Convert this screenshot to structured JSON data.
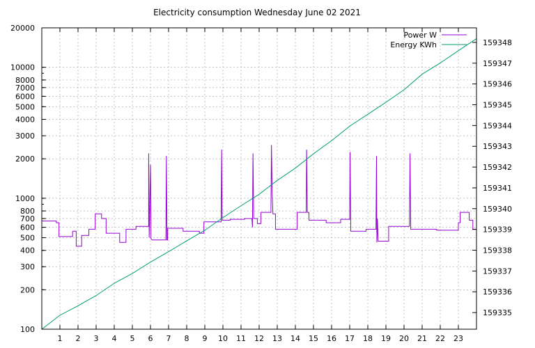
{
  "chart_data": {
    "type": "line",
    "title": "Electricity consumption Wednesday June 02 2021",
    "x": {
      "range": [
        0,
        24
      ],
      "ticks": [
        1,
        2,
        3,
        4,
        5,
        6,
        7,
        8,
        9,
        10,
        11,
        12,
        13,
        14,
        15,
        16,
        17,
        18,
        19,
        20,
        21,
        22,
        23
      ],
      "grid": true
    },
    "y_left": {
      "scale": "log",
      "range": [
        100,
        20000
      ],
      "ticks": [
        100,
        200,
        300,
        400,
        500,
        600,
        700,
        800,
        1000,
        2000,
        3000,
        4000,
        5000,
        6000,
        7000,
        8000,
        10000,
        20000
      ],
      "grid": true
    },
    "y_right": {
      "scale": "linear",
      "range": [
        159334.2,
        159348.7
      ],
      "ticks": [
        159335,
        159336,
        159337,
        159338,
        159339,
        159340,
        159341,
        159342,
        159343,
        159344,
        159345,
        159346,
        159347,
        159348
      ]
    },
    "legend": {
      "placement": "top-right"
    },
    "series": [
      {
        "name": "Power W",
        "axis": "left",
        "color": "#9400d3",
        "points": [
          [
            0,
            670
          ],
          [
            0.8,
            670
          ],
          [
            0.8,
            650
          ],
          [
            0.95,
            650
          ],
          [
            0.95,
            510
          ],
          [
            1.7,
            510
          ],
          [
            1.7,
            560
          ],
          [
            1.9,
            560
          ],
          [
            1.9,
            430
          ],
          [
            2.2,
            430
          ],
          [
            2.2,
            520
          ],
          [
            2.6,
            520
          ],
          [
            2.6,
            580
          ],
          [
            2.95,
            580
          ],
          [
            2.95,
            760
          ],
          [
            3.3,
            760
          ],
          [
            3.3,
            700
          ],
          [
            3.55,
            700
          ],
          [
            3.55,
            540
          ],
          [
            4.3,
            540
          ],
          [
            4.3,
            460
          ],
          [
            4.65,
            460
          ],
          [
            4.65,
            580
          ],
          [
            5.2,
            580
          ],
          [
            5.2,
            610
          ],
          [
            5.9,
            610
          ],
          [
            5.9,
            2200
          ],
          [
            5.93,
            500
          ],
          [
            6.0,
            1800
          ],
          [
            6.03,
            490
          ],
          [
            6.1,
            480
          ],
          [
            6.85,
            480
          ],
          [
            6.88,
            2100
          ],
          [
            6.91,
            480
          ],
          [
            6.95,
            480
          ],
          [
            6.95,
            590
          ],
          [
            7.8,
            590
          ],
          [
            7.8,
            560
          ],
          [
            8.7,
            560
          ],
          [
            8.7,
            540
          ],
          [
            8.95,
            540
          ],
          [
            8.95,
            660
          ],
          [
            9.9,
            660
          ],
          [
            9.93,
            2350
          ],
          [
            9.96,
            680
          ],
          [
            10.4,
            680
          ],
          [
            10.4,
            690
          ],
          [
            11.2,
            690
          ],
          [
            11.2,
            700
          ],
          [
            11.6,
            700
          ],
          [
            11.63,
            600
          ],
          [
            11.66,
            2200
          ],
          [
            11.7,
            700
          ],
          [
            11.9,
            700
          ],
          [
            11.9,
            640
          ],
          [
            12.1,
            640
          ],
          [
            12.1,
            780
          ],
          [
            12.65,
            780
          ],
          [
            12.68,
            2550
          ],
          [
            12.72,
            1100
          ],
          [
            12.76,
            760
          ],
          [
            12.9,
            760
          ],
          [
            12.9,
            580
          ],
          [
            14.1,
            580
          ],
          [
            14.1,
            780
          ],
          [
            14.6,
            780
          ],
          [
            14.62,
            2350
          ],
          [
            14.66,
            780
          ],
          [
            14.75,
            780
          ],
          [
            14.75,
            680
          ],
          [
            15.7,
            680
          ],
          [
            15.7,
            650
          ],
          [
            16.5,
            650
          ],
          [
            16.5,
            690
          ],
          [
            17.0,
            690
          ],
          [
            17.02,
            2250
          ],
          [
            17.06,
            560
          ],
          [
            17.9,
            560
          ],
          [
            17.9,
            580
          ],
          [
            18.45,
            580
          ],
          [
            18.48,
            2100
          ],
          [
            18.5,
            460
          ],
          [
            18.53,
            700
          ],
          [
            18.57,
            470
          ],
          [
            19.15,
            470
          ],
          [
            19.15,
            610
          ],
          [
            20.3,
            610
          ],
          [
            20.33,
            2200
          ],
          [
            20.37,
            580
          ],
          [
            21.8,
            580
          ],
          [
            21.8,
            570
          ],
          [
            23.0,
            570
          ],
          [
            23.0,
            650
          ],
          [
            23.1,
            650
          ],
          [
            23.1,
            780
          ],
          [
            23.6,
            780
          ],
          [
            23.6,
            680
          ],
          [
            23.8,
            680
          ],
          [
            23.8,
            580
          ],
          [
            24.0,
            580
          ]
        ]
      },
      {
        "name": "Energy KWh",
        "axis": "right",
        "color": "#009e73",
        "points": [
          [
            0,
            159334.2
          ],
          [
            1,
            159334.87
          ],
          [
            2,
            159335.33
          ],
          [
            3,
            159335.82
          ],
          [
            4,
            159336.41
          ],
          [
            5,
            159336.88
          ],
          [
            6,
            159337.43
          ],
          [
            7,
            159337.93
          ],
          [
            8,
            159338.45
          ],
          [
            9,
            159338.96
          ],
          [
            10,
            159339.57
          ],
          [
            11,
            159340.14
          ],
          [
            12,
            159340.69
          ],
          [
            13,
            159341.36
          ],
          [
            14,
            159341.95
          ],
          [
            15,
            159342.64
          ],
          [
            16,
            159343.27
          ],
          [
            17,
            159343.97
          ],
          [
            18,
            159344.54
          ],
          [
            19,
            159345.12
          ],
          [
            20,
            159345.72
          ],
          [
            21,
            159346.47
          ],
          [
            22,
            159347.01
          ],
          [
            23,
            159347.6
          ],
          [
            24,
            159348.18
          ]
        ]
      }
    ]
  }
}
